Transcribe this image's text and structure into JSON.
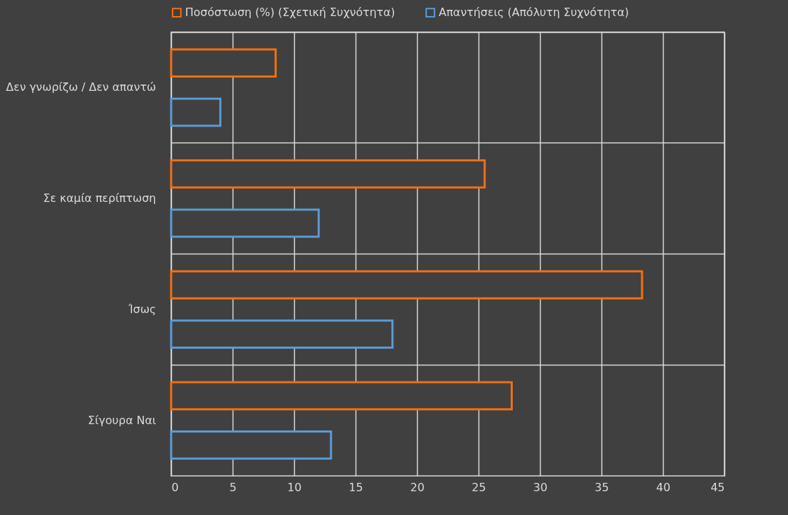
{
  "chart_data": {
    "type": "bar",
    "orientation": "horizontal",
    "categories": [
      "Δεν γνωρίζω / Δεν απαντώ",
      "Σε καμία περίπτωση",
      "Ίσως",
      "Σίγουρα Ναι"
    ],
    "series": [
      {
        "name": "Ποσόστωση (%) (Σχετική Συχνότητα)",
        "color": "#f36f12",
        "values": [
          8.5,
          25.5,
          38.3,
          27.7
        ]
      },
      {
        "name": "Απαντήσεις (Απόλυτη Συχνότητα)",
        "color": "#5b9bd5",
        "values": [
          4,
          12,
          18,
          13
        ]
      }
    ],
    "xlim": [
      0,
      45
    ],
    "xticks": [
      0,
      5,
      10,
      15,
      20,
      25,
      30,
      35,
      40,
      45
    ],
    "grid": true,
    "legend": "top"
  }
}
